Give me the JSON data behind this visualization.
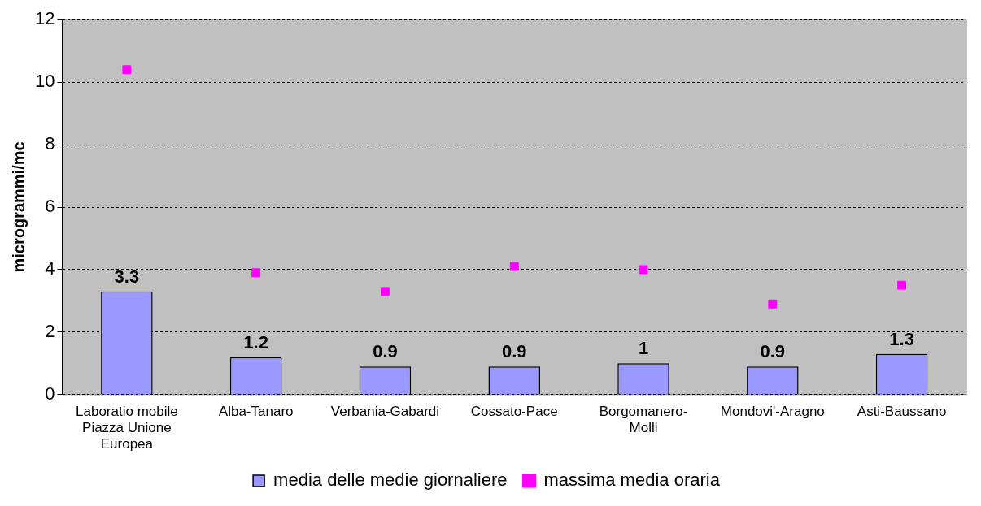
{
  "chart_data": {
    "type": "bar",
    "ylabel": "microgrammi/mc",
    "categories": [
      "Laboratio mobile Piazza Unione Europea",
      "Alba-Tanaro",
      "Verbania-Gabardi",
      "Cossato-Pace",
      "Borgomanero-Molli",
      "Mondovi'-Aragno",
      "Asti-Baussano"
    ],
    "series": [
      {
        "name": "media delle medie giornaliere",
        "color": "#9999ff",
        "values": [
          3.3,
          1.2,
          0.9,
          0.9,
          1,
          0.9,
          1.3
        ],
        "value_labels": [
          "3.3",
          "1.2",
          "0.9",
          "0.9",
          "1",
          "0.9",
          "1.3"
        ]
      },
      {
        "name": "massima media oraria",
        "type": "scatter",
        "color": "#ff00ff",
        "marker": "square",
        "x": [
          "Laboratio mobile Piazza Unione Europea",
          "Alba-Tanaro",
          "Verbania-Gabardi",
          "Cossato-Pace",
          "Borgomanero-Molli",
          "Mondovi'-Aragno",
          "Asti-Baussano"
        ],
        "values": [
          10.4,
          3.9,
          3.3,
          4.1,
          4.0,
          2.9,
          3.5
        ]
      }
    ],
    "ylim": [
      0,
      12
    ],
    "yticks": [
      0,
      2,
      4,
      6,
      8,
      10,
      12
    ],
    "grid": "y",
    "legend": "bottom"
  }
}
